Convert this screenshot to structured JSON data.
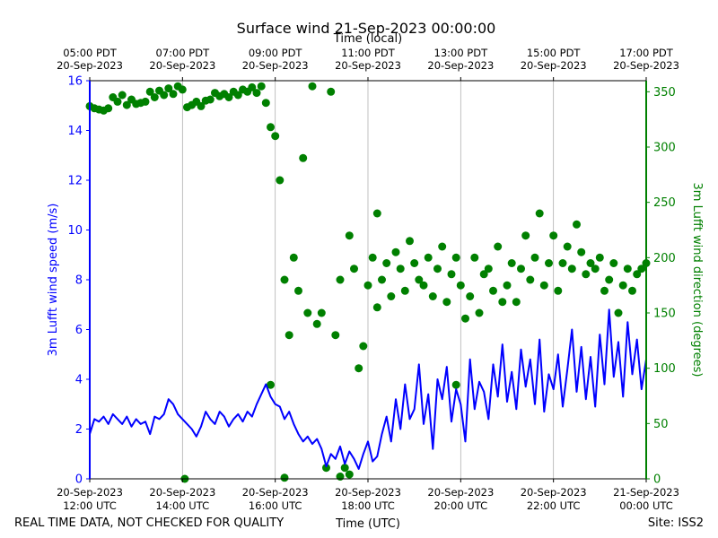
{
  "chart_data": {
    "type": "line",
    "title": "Surface wind 21-Sep-2023 00:00:00",
    "top_axis_label": "Time (local)",
    "top_ticks": [
      {
        "t": 0,
        "line1": "05:00 PDT",
        "line2": "20-Sep-2023"
      },
      {
        "t": 2,
        "line1": "07:00 PDT",
        "line2": "20-Sep-2023"
      },
      {
        "t": 4,
        "line1": "09:00 PDT",
        "line2": "20-Sep-2023"
      },
      {
        "t": 6,
        "line1": "11:00 PDT",
        "line2": "20-Sep-2023"
      },
      {
        "t": 8,
        "line1": "13:00 PDT",
        "line2": "20-Sep-2023"
      },
      {
        "t": 10,
        "line1": "15:00 PDT",
        "line2": "20-Sep-2023"
      },
      {
        "t": 12,
        "line1": "17:00 PDT",
        "line2": "20-Sep-2023"
      }
    ],
    "bottom_axis_label": "Time (UTC)",
    "bottom_ticks": [
      {
        "t": 0,
        "line1": "20-Sep-2023",
        "line2": "12:00 UTC"
      },
      {
        "t": 2,
        "line1": "20-Sep-2023",
        "line2": "14:00 UTC"
      },
      {
        "t": 4,
        "line1": "20-Sep-2023",
        "line2": "16:00 UTC"
      },
      {
        "t": 6,
        "line1": "20-Sep-2023",
        "line2": "18:00 UTC"
      },
      {
        "t": 8,
        "line1": "20-Sep-2023",
        "line2": "20:00 UTC"
      },
      {
        "t": 10,
        "line1": "20-Sep-2023",
        "line2": "22:00 UTC"
      },
      {
        "t": 12,
        "line1": "21-Sep-2023",
        "line2": "00:00 UTC"
      }
    ],
    "x_unit": "hours since 20-Sep-2023 12:00 UTC",
    "xlim": [
      0,
      12
    ],
    "grid": "vertical at major ticks",
    "left_axis": {
      "label": "3m Lufft wind speed (m/s)",
      "ylim": [
        0,
        16
      ],
      "ticks": [
        0,
        2,
        4,
        6,
        8,
        10,
        12,
        14,
        16
      ],
      "color": "#0000ff"
    },
    "right_axis": {
      "label": "3m Lufft wind direction (degrees)",
      "ylim": [
        0,
        360
      ],
      "ticks": [
        0,
        50,
        100,
        150,
        200,
        250,
        300,
        350
      ],
      "color": "#008000"
    },
    "series": [
      {
        "name": "wind speed",
        "axis": "left",
        "style": "line",
        "color": "#0000ff",
        "x": [
          0,
          0.1,
          0.2,
          0.3,
          0.4,
          0.5,
          0.6,
          0.7,
          0.8,
          0.9,
          1.0,
          1.1,
          1.2,
          1.3,
          1.4,
          1.5,
          1.6,
          1.7,
          1.8,
          1.9,
          2.0,
          2.1,
          2.2,
          2.3,
          2.4,
          2.5,
          2.6,
          2.7,
          2.8,
          2.9,
          3.0,
          3.1,
          3.2,
          3.3,
          3.4,
          3.5,
          3.6,
          3.7,
          3.8,
          3.9,
          4.0,
          4.1,
          4.2,
          4.3,
          4.4,
          4.5,
          4.6,
          4.7,
          4.8,
          4.9,
          5.0,
          5.1,
          5.2,
          5.3,
          5.4,
          5.5,
          5.6,
          5.7,
          5.8,
          5.9,
          6.0,
          6.1,
          6.2,
          6.3,
          6.4,
          6.5,
          6.6,
          6.7,
          6.8,
          6.9,
          7.0,
          7.1,
          7.2,
          7.3,
          7.4,
          7.5,
          7.6,
          7.7,
          7.8,
          7.9,
          8.0,
          8.1,
          8.2,
          8.3,
          8.4,
          8.5,
          8.6,
          8.7,
          8.8,
          8.9,
          9.0,
          9.1,
          9.2,
          9.3,
          9.4,
          9.5,
          9.6,
          9.7,
          9.8,
          9.9,
          10.0,
          10.1,
          10.2,
          10.3,
          10.4,
          10.5,
          10.6,
          10.7,
          10.8,
          10.9,
          11.0,
          11.1,
          11.2,
          11.3,
          11.4,
          11.5,
          11.6,
          11.7,
          11.8,
          11.9,
          12.0
        ],
        "values": [
          1.8,
          2.4,
          2.3,
          2.5,
          2.2,
          2.6,
          2.4,
          2.2,
          2.5,
          2.1,
          2.4,
          2.2,
          2.3,
          1.8,
          2.5,
          2.4,
          2.6,
          3.2,
          3.0,
          2.6,
          2.4,
          2.2,
          2.0,
          1.7,
          2.1,
          2.7,
          2.4,
          2.2,
          2.7,
          2.5,
          2.1,
          2.4,
          2.6,
          2.3,
          2.7,
          2.5,
          3.0,
          3.4,
          3.8,
          3.3,
          3.0,
          2.9,
          2.4,
          2.7,
          2.2,
          1.8,
          1.5,
          1.7,
          1.4,
          1.6,
          1.2,
          0.5,
          1.0,
          0.8,
          1.3,
          0.6,
          1.1,
          0.8,
          0.4,
          1.0,
          1.5,
          0.7,
          0.9,
          1.8,
          2.5,
          1.5,
          3.2,
          2.0,
          3.8,
          2.4,
          2.8,
          4.6,
          2.2,
          3.4,
          1.2,
          4.0,
          3.2,
          4.5,
          2.3,
          3.6,
          3.0,
          1.5,
          4.8,
          2.8,
          3.9,
          3.5,
          2.4,
          4.6,
          3.3,
          5.4,
          3.1,
          4.3,
          2.8,
          5.2,
          3.7,
          4.8,
          3.0,
          5.6,
          2.7,
          4.2,
          3.6,
          5.0,
          2.9,
          4.4,
          6.0,
          3.5,
          5.3,
          3.2,
          4.9,
          2.9,
          5.8,
          3.8,
          6.8,
          4.1,
          5.5,
          3.3,
          6.3,
          4.2,
          5.6,
          3.6,
          4.8
        ]
      },
      {
        "name": "wind direction",
        "axis": "right",
        "style": "markers",
        "color": "#008000",
        "x": [
          0,
          0.1,
          0.2,
          0.3,
          0.4,
          0.5,
          0.6,
          0.7,
          0.8,
          0.9,
          1.0,
          1.1,
          1.2,
          1.3,
          1.4,
          1.5,
          1.6,
          1.7,
          1.8,
          1.9,
          2.0,
          2.1,
          2.2,
          2.3,
          2.4,
          2.5,
          2.6,
          2.7,
          2.8,
          2.9,
          3.0,
          3.1,
          3.2,
          3.3,
          3.4,
          3.5,
          3.6,
          3.7,
          3.8,
          3.9,
          4.0,
          4.1,
          4.2,
          4.3,
          4.4,
          4.5,
          4.6,
          4.7,
          4.8,
          4.9,
          5.0,
          5.1,
          5.2,
          5.3,
          5.4,
          5.5,
          5.6,
          5.7,
          5.8,
          5.9,
          6.0,
          6.1,
          6.2,
          6.3,
          6.4,
          6.5,
          6.6,
          6.7,
          6.8,
          6.9,
          7.0,
          7.1,
          7.2,
          7.3,
          7.4,
          7.5,
          7.6,
          7.7,
          7.8,
          7.9,
          8.0,
          8.1,
          8.2,
          8.3,
          8.4,
          8.5,
          8.6,
          8.7,
          8.8,
          8.9,
          9.0,
          9.1,
          9.2,
          9.3,
          9.4,
          9.5,
          9.6,
          9.7,
          9.8,
          9.9,
          10.0,
          10.1,
          10.2,
          10.3,
          10.4,
          10.5,
          10.6,
          10.7,
          10.8,
          10.9,
          11.0,
          11.1,
          11.2,
          11.3,
          11.4,
          11.5,
          11.6,
          11.7,
          11.8,
          11.9,
          12.0,
          2.05,
          4.2,
          5.4,
          5.6,
          6.2,
          7.9,
          3.9
        ],
        "values": [
          337,
          335,
          334,
          333,
          335,
          345,
          341,
          347,
          338,
          343,
          339,
          340,
          341,
          350,
          345,
          351,
          347,
          353,
          348,
          355,
          352,
          336,
          338,
          341,
          337,
          342,
          343,
          349,
          346,
          348,
          345,
          350,
          347,
          352,
          350,
          354,
          349,
          355,
          340,
          318,
          310,
          270,
          180,
          130,
          200,
          170,
          290,
          150,
          355,
          140,
          150,
          10,
          350,
          130,
          180,
          10,
          220,
          190,
          100,
          120,
          175,
          200,
          240,
          180,
          195,
          165,
          205,
          190,
          170,
          215,
          195,
          180,
          175,
          200,
          165,
          190,
          210,
          160,
          185,
          200,
          175,
          145,
          165,
          200,
          150,
          185,
          190,
          170,
          210,
          160,
          175,
          195,
          160,
          190,
          220,
          180,
          200,
          240,
          175,
          195,
          220,
          170,
          195,
          210,
          190,
          230,
          205,
          185,
          195,
          190,
          200,
          170,
          180,
          195,
          150,
          175,
          190,
          170,
          185,
          190,
          195,
          0,
          1,
          2,
          4,
          155,
          85,
          85
        ]
      }
    ],
    "footer_left": "REAL TIME DATA, NOT CHECKED FOR QUALITY",
    "footer_right": "Site: ISS2"
  }
}
